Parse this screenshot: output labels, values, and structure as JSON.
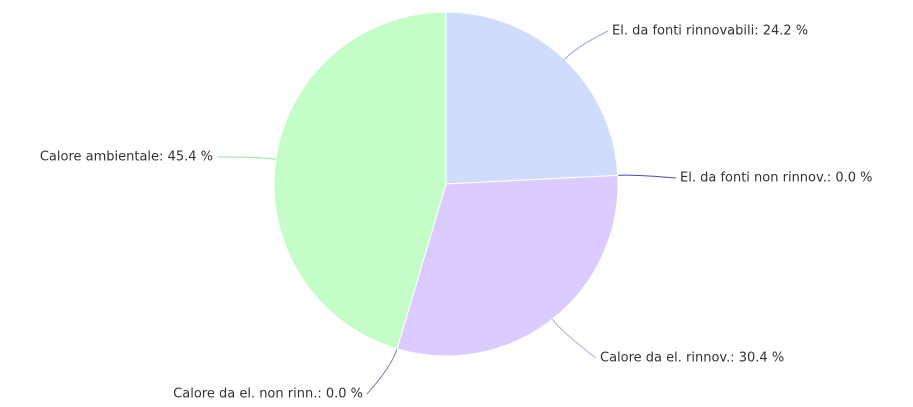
{
  "chart_data": {
    "type": "pie",
    "values": [
      24.2,
      0.0,
      30.4,
      0.0,
      45.4
    ],
    "value_labels": [
      "El. da fonti rinnovabili: 24.2 %",
      "El. da fonti non rinnov.: 0.0 %",
      "Calore da el. rinnov.: 30.4 %",
      "Calore da el. non rinn.: 0.0 %",
      "Calore ambientale: 45.4 %"
    ],
    "colors": [
      "#d0dcfe",
      "#4848c8",
      "#dccbfe",
      "#7878c8",
      "#c4fdc8"
    ]
  }
}
